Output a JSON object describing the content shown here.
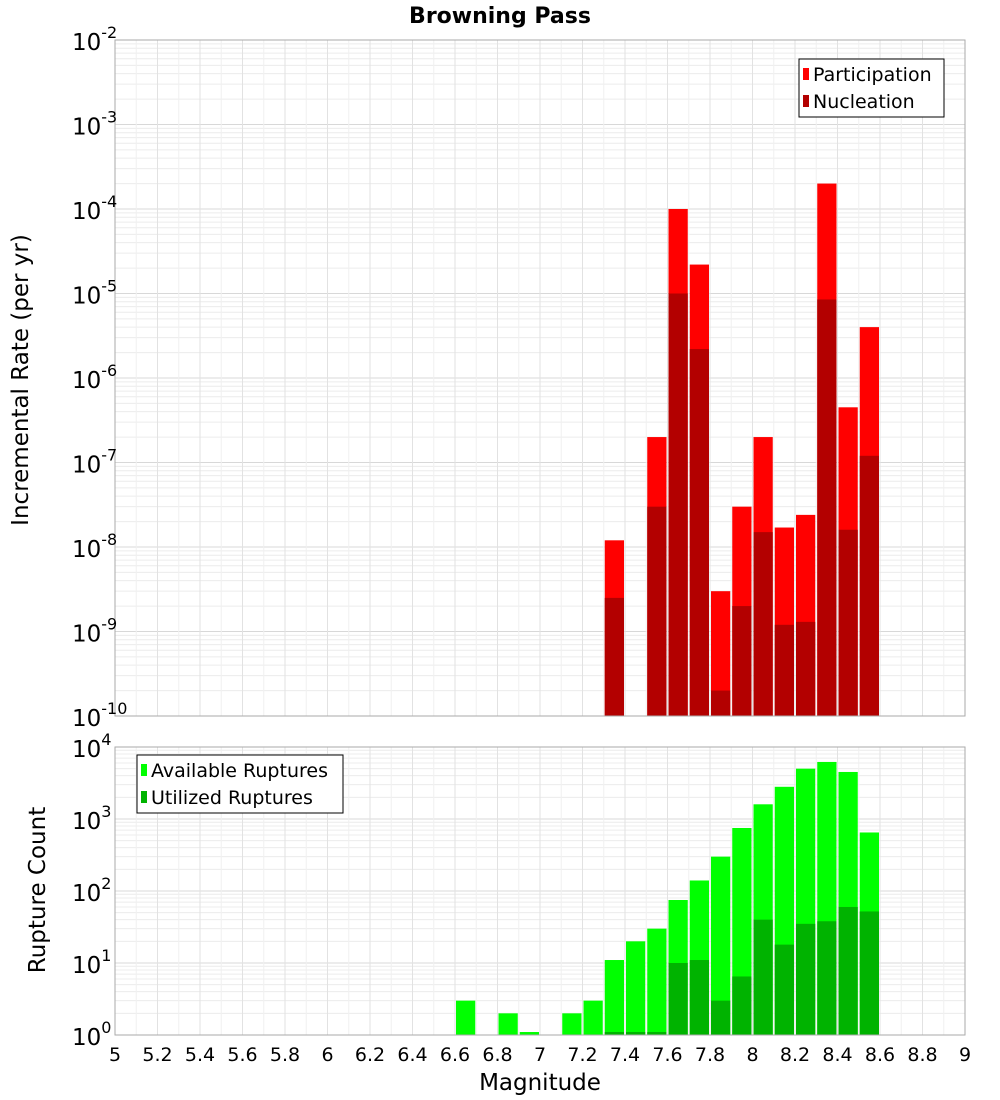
{
  "chart_data": [
    {
      "type": "bar",
      "title": "Browning Pass",
      "xlabel": "",
      "ylabel": "Incremental Rate (per yr)",
      "yscale": "log",
      "ylim_exp": [
        -10,
        -2
      ],
      "xlim": [
        5,
        9
      ],
      "grid": true,
      "legend_position": "top-right",
      "x": [
        7.35,
        7.55,
        7.65,
        7.75,
        7.85,
        7.95,
        8.05,
        8.15,
        8.25,
        8.35,
        8.45,
        8.55
      ],
      "series": [
        {
          "name": "Participation",
          "color": "#ff0000",
          "values": [
            1.2e-08,
            2e-07,
            0.0001,
            2.2e-05,
            3e-09,
            3e-08,
            2e-07,
            1.7e-08,
            2.4e-08,
            0.0002,
            4.5e-07,
            4e-06
          ]
        },
        {
          "name": "Nucleation",
          "color": "#b30000",
          "values": [
            2.5e-09,
            3e-08,
            1e-05,
            2.2e-06,
            2e-10,
            2e-09,
            1.5e-08,
            1.2e-09,
            1.3e-09,
            8.5e-06,
            1.6e-08,
            1.2e-07
          ]
        }
      ]
    },
    {
      "type": "bar",
      "title": "",
      "xlabel": "Magnitude",
      "ylabel": "Rupture Count",
      "yscale": "log",
      "ylim_exp": [
        0,
        4
      ],
      "xlim": [
        5,
        9
      ],
      "grid": true,
      "legend_position": "top-left",
      "x": [
        6.65,
        6.85,
        6.95,
        7.15,
        7.25,
        7.35,
        7.45,
        7.55,
        7.65,
        7.75,
        7.85,
        7.95,
        8.05,
        8.15,
        8.25,
        8.35,
        8.45,
        8.55
      ],
      "series": [
        {
          "name": "Available Ruptures",
          "color": "#00ff00",
          "values": [
            3,
            2,
            1.1,
            2,
            3,
            11,
            20,
            30,
            75,
            140,
            300,
            750,
            1600,
            2800,
            5000,
            6200,
            4500,
            650
          ]
        },
        {
          "name": "Utilized Ruptures",
          "color": "#00b300",
          "values": [
            0,
            0,
            0,
            0,
            0,
            1.1,
            1.1,
            1.1,
            10,
            11,
            3,
            6.5,
            40,
            18,
            35,
            38,
            60,
            52
          ]
        }
      ]
    }
  ],
  "x_ticks": [
    "5",
    "5.2",
    "5.4",
    "5.6",
    "5.8",
    "6",
    "6.2",
    "6.4",
    "6.6",
    "6.8",
    "7",
    "7.2",
    "7.4",
    "7.6",
    "7.8",
    "8",
    "8.2",
    "8.4",
    "8.6",
    "8.8",
    "9"
  ],
  "top_y_ticks": [
    {
      "base": "10",
      "exp": "-2"
    },
    {
      "base": "10",
      "exp": "-3"
    },
    {
      "base": "10",
      "exp": "-4"
    },
    {
      "base": "10",
      "exp": "-5"
    },
    {
      "base": "10",
      "exp": "-6"
    },
    {
      "base": "10",
      "exp": "-7"
    },
    {
      "base": "10",
      "exp": "-8"
    },
    {
      "base": "10",
      "exp": "-9"
    },
    {
      "base": "10",
      "exp": "-10"
    }
  ],
  "bottom_y_ticks": [
    {
      "base": "10",
      "exp": "4"
    },
    {
      "base": "10",
      "exp": "3"
    },
    {
      "base": "10",
      "exp": "2"
    },
    {
      "base": "10",
      "exp": "1"
    },
    {
      "base": "10",
      "exp": "0"
    }
  ]
}
